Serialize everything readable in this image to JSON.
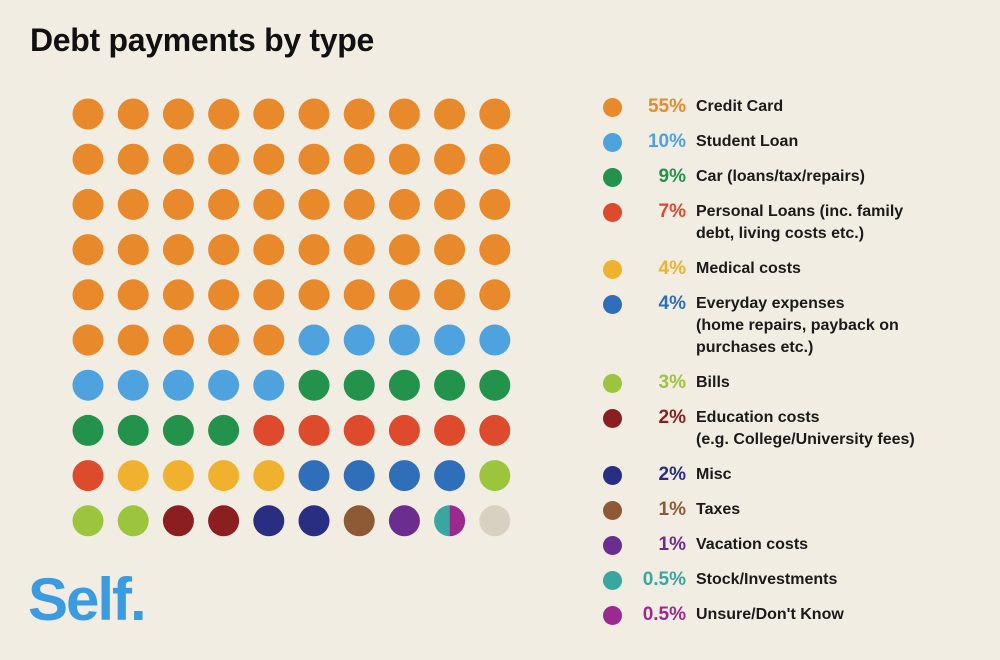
{
  "title": "Debt payments by type",
  "logo": "Self.",
  "chart_data": {
    "type": "waffle",
    "title": "Debt payments by type",
    "grid": "10x10",
    "categories": [
      {
        "pct_label": "55%",
        "label": "Credit Card",
        "value": 55,
        "color": "#e8892b"
      },
      {
        "pct_label": "10%",
        "label": "Student Loan",
        "value": 10,
        "color": "#4ea3de"
      },
      {
        "pct_label": "9%",
        "label": "Car (loans/tax/repairs)",
        "value": 9,
        "color": "#23924a"
      },
      {
        "pct_label": "7%",
        "label": "Personal Loans (inc. family\ndebt, living costs etc.)",
        "value": 7,
        "color": "#dd4a2c"
      },
      {
        "pct_label": "4%",
        "label": "Medical costs",
        "value": 4,
        "color": "#f0b22e"
      },
      {
        "pct_label": "4%",
        "label": "Everyday expenses\n(home repairs, payback on\npurchases etc.)",
        "value": 4,
        "color": "#2f6eb8"
      },
      {
        "pct_label": "3%",
        "label": "Bills",
        "value": 3,
        "color": "#9cc43d"
      },
      {
        "pct_label": "2%",
        "label": "Education costs\n(e.g. College/University fees)",
        "value": 2,
        "color": "#8b1e1e"
      },
      {
        "pct_label": "2%",
        "label": "Misc",
        "value": 2,
        "color": "#2a2e82"
      },
      {
        "pct_label": "1%",
        "label": "Taxes",
        "value": 1,
        "color": "#8e5a35"
      },
      {
        "pct_label": "1%",
        "label": "Vacation costs",
        "value": 1,
        "color": "#6b2d8e"
      },
      {
        "pct_label": "0.5%",
        "label": "Stock/Investments",
        "value": 0.5,
        "color": "#3aa6a0"
      },
      {
        "pct_label": "0.5%",
        "label": "Unsure/Don't Know",
        "value": 0.5,
        "color": "#9c2a8e"
      }
    ],
    "remainder_color": "#d8d0c0"
  }
}
